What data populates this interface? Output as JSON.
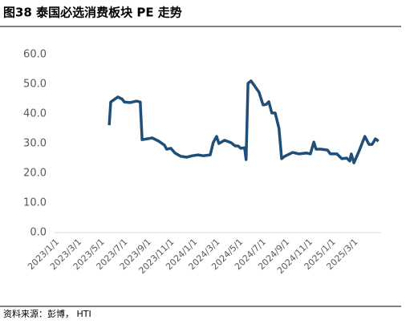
{
  "chart_data": {
    "type": "line",
    "title": "图38 泰国必选消费板块 PE 走势",
    "source": "资料来源：彭博， HTI",
    "x": [
      "2023/5/17",
      "2023/5/21",
      "2023/6/9",
      "2023/6/20",
      "2023/6/26",
      "2023/7/11",
      "2023/7/28",
      "2023/8/7",
      "2023/8/12",
      "2023/9/8",
      "2023/9/25",
      "2023/10/10",
      "2023/10/16",
      "2023/10/27",
      "2023/11/7",
      "2023/11/22",
      "2023/12/8",
      "2023/12/23",
      "2024/1/7",
      "2024/1/20",
      "2024/2/8",
      "2024/2/16",
      "2024/2/25",
      "2024/3/2",
      "2024/3/17",
      "2024/4/3",
      "2024/4/14",
      "2024/4/22",
      "2024/4/29",
      "2024/5/9",
      "2024/5/13",
      "2024/5/18",
      "2024/5/26",
      "2024/6/10",
      "2024/6/16",
      "2024/6/27",
      "2024/7/5",
      "2024/7/12",
      "2024/7/20",
      "2024/7/29",
      "2024/8/8",
      "2024/8/15",
      "2024/8/23",
      "2024/9/13",
      "2024/9/30",
      "2024/10/20",
      "2024/10/30",
      "2024/11/8",
      "2024/11/14",
      "2024/11/27",
      "2024/12/14",
      "2024/12/22",
      "2025/1/8",
      "2025/1/21",
      "2025/2/3",
      "2025/2/11",
      "2025/2/15",
      "2025/2/22",
      "2025/3/8",
      "2025/3/23",
      "2025/4/3",
      "2025/4/11",
      "2025/4/20",
      "2025/4/28"
    ],
    "series": [
      {
        "color": "#1f4e79",
        "values": [
          36.2,
          44,
          45.7,
          45,
          44,
          43.8,
          44.3,
          44,
          31.3,
          31.9,
          30.8,
          29.5,
          28.1,
          28.4,
          26.8,
          25.7,
          25.4,
          25.9,
          26.2,
          25.9,
          26.2,
          30.3,
          32.4,
          30,
          31.1,
          30.3,
          29.2,
          29.2,
          28.4,
          28.6,
          24.6,
          50.3,
          51.1,
          48.4,
          47.3,
          43,
          43.2,
          44.1,
          40.3,
          40.3,
          35.1,
          24.9,
          25.7,
          27,
          26.5,
          26.8,
          26.5,
          30.5,
          28.1,
          28.1,
          27.8,
          26.5,
          26.5,
          24.9,
          25.1,
          24.1,
          26.5,
          23.5,
          27.6,
          32.4,
          29.7,
          29.7,
          31.6,
          30.8
        ]
      }
    ],
    "xlim": [
      "2023/1/1",
      "2025/5/5"
    ],
    "xticks": [
      "2023/1/1",
      "2023/3/1",
      "2023/5/1",
      "2023/7/1",
      "2023/9/1",
      "2023/11/1",
      "2024/1/1",
      "2024/3/1",
      "2024/5/1",
      "2024/7/1",
      "2024/9/1",
      "2024/11/1",
      "2025/1/1",
      "2025/3/1"
    ],
    "ylim": [
      0,
      60
    ],
    "yticks": [
      {
        "value": 0,
        "label": "0.0"
      },
      {
        "value": 10,
        "label": "10.0"
      },
      {
        "value": 20,
        "label": "20.0"
      },
      {
        "value": 30,
        "label": "30.0"
      },
      {
        "value": 40,
        "label": "40.0"
      },
      {
        "value": 50,
        "label": "50.0"
      },
      {
        "value": 60,
        "label": "60.0"
      }
    ],
    "grid": false
  }
}
